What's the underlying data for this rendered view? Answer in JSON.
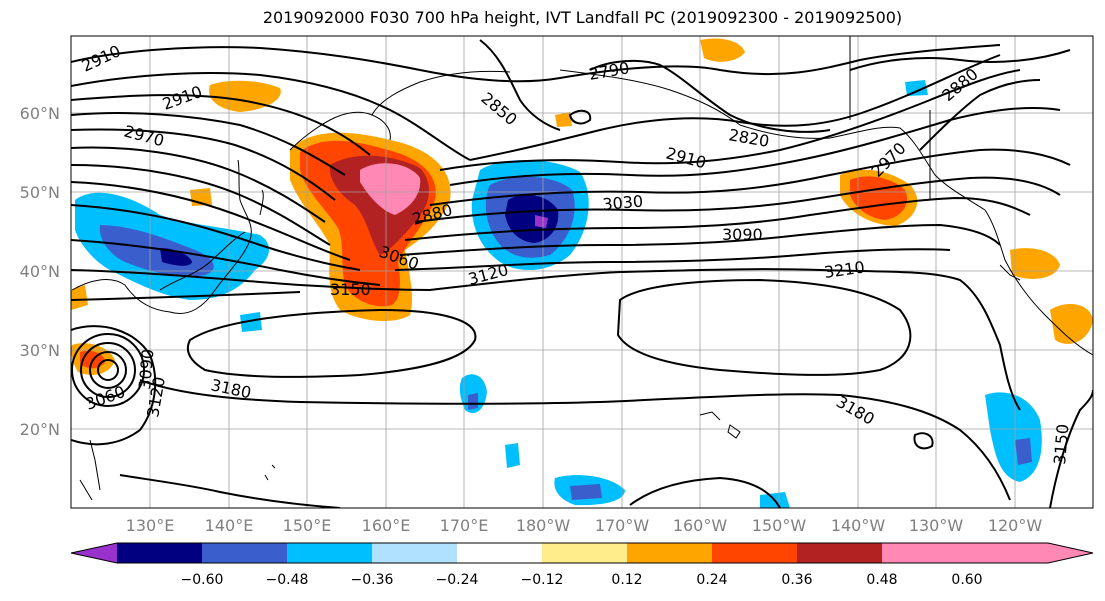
{
  "title": "2019092000 F030 700 hPa height, IVT Landfall PC (2019092300 - 2019092500)",
  "map": {
    "lat_ticks": [
      "60°N",
      "50°N",
      "40°N",
      "30°N",
      "20°N"
    ],
    "lon_ticks": [
      "130°E",
      "140°E",
      "150°E",
      "160°E",
      "170°E",
      "180°W",
      "170°W",
      "160°W",
      "150°W",
      "140°W",
      "130°W",
      "120°W"
    ],
    "contour_labels": [
      "2910",
      "2910",
      "2970",
      "2850",
      "2790",
      "2820",
      "2910",
      "2880",
      "2970",
      "2880",
      "3030",
      "3090",
      "3060",
      "3120",
      "3150",
      "3210",
      "3180",
      "3180",
      "3060",
      "3090",
      "3120",
      "3150"
    ]
  },
  "colorbar": {
    "colors": [
      "#9932cc",
      "#000080",
      "#3a5fcd",
      "#00bfff",
      "#b0e2ff",
      "#ffffff",
      "#ffec8b",
      "#ffa500",
      "#ff4500",
      "#b22222",
      "#ff88b4"
    ],
    "ticks": [
      "−0.60",
      "−0.48",
      "−0.36",
      "−0.24",
      "−0.12",
      "0.12",
      "0.24",
      "0.36",
      "0.48",
      "0.60"
    ]
  }
}
